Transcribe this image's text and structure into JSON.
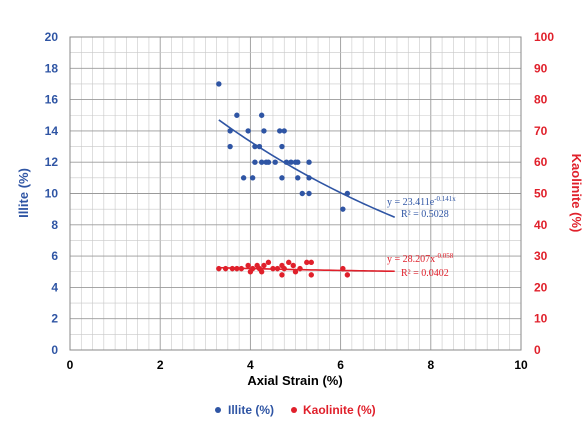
{
  "chart_data": {
    "type": "scatter",
    "xlabel": "Axial Strain (%)",
    "ylabel_left": "Illite (%)",
    "ylabel_right": "Kaolinite (%)",
    "xlim": [
      0,
      10
    ],
    "ylim_left": [
      0,
      20
    ],
    "ylim_right": [
      0,
      100
    ],
    "x_ticks": [
      "0",
      "2",
      "4",
      "6",
      "8",
      "10"
    ],
    "y_left_ticks": [
      "0",
      "2",
      "4",
      "6",
      "8",
      "10",
      "12",
      "14",
      "16",
      "18",
      "20"
    ],
    "y_right_ticks": [
      "0",
      "10",
      "20",
      "30",
      "40",
      "50",
      "60",
      "70",
      "80",
      "90",
      "100"
    ],
    "grid": true,
    "legend_position": "bottom",
    "colors": {
      "illite": "#2f55a4",
      "kaolinite": "#e0202b",
      "axis_left": "#2f55a4",
      "axis_right": "#e0202b"
    },
    "series": [
      {
        "name": "Illite (%)",
        "axis": "left",
        "points": [
          [
            3.3,
            17
          ],
          [
            3.55,
            14
          ],
          [
            3.55,
            13
          ],
          [
            3.7,
            15
          ],
          [
            3.85,
            11
          ],
          [
            3.95,
            14
          ],
          [
            4.05,
            11
          ],
          [
            4.1,
            13
          ],
          [
            4.1,
            12
          ],
          [
            4.2,
            13
          ],
          [
            4.25,
            15
          ],
          [
            4.25,
            12
          ],
          [
            4.3,
            14
          ],
          [
            4.35,
            12
          ],
          [
            4.4,
            12
          ],
          [
            4.55,
            12
          ],
          [
            4.65,
            14
          ],
          [
            4.7,
            11
          ],
          [
            4.7,
            13
          ],
          [
            4.75,
            14
          ],
          [
            4.8,
            12
          ],
          [
            4.9,
            12
          ],
          [
            5.0,
            12
          ],
          [
            5.05,
            11
          ],
          [
            5.05,
            12
          ],
          [
            5.15,
            10
          ],
          [
            5.3,
            12
          ],
          [
            5.3,
            11
          ],
          [
            5.3,
            10
          ],
          [
            6.05,
            9
          ],
          [
            6.15,
            10
          ]
        ],
        "trendline": {
          "equation": "y = 23.411e",
          "exponent": "-0.141x",
          "r2": "R² = 0.5028",
          "a": 23.411,
          "b": -0.141,
          "x_range": [
            3.3,
            7.2
          ]
        }
      },
      {
        "name": "Kaolinite (%)",
        "axis": "right",
        "points": [
          [
            3.3,
            26
          ],
          [
            3.45,
            26
          ],
          [
            3.6,
            26
          ],
          [
            3.7,
            26
          ],
          [
            3.8,
            26
          ],
          [
            3.95,
            27
          ],
          [
            4.0,
            25
          ],
          [
            4.05,
            26
          ],
          [
            4.15,
            27
          ],
          [
            4.2,
            26
          ],
          [
            4.25,
            25
          ],
          [
            4.3,
            27
          ],
          [
            4.4,
            28
          ],
          [
            4.5,
            26
          ],
          [
            4.6,
            26
          ],
          [
            4.7,
            27
          ],
          [
            4.7,
            24
          ],
          [
            4.75,
            26
          ],
          [
            4.85,
            28
          ],
          [
            4.95,
            27
          ],
          [
            5.0,
            25
          ],
          [
            5.1,
            26
          ],
          [
            5.25,
            28
          ],
          [
            5.35,
            24
          ],
          [
            5.35,
            28
          ],
          [
            6.05,
            26
          ],
          [
            6.15,
            24
          ]
        ],
        "trendline": {
          "equation": "y = 28.207x",
          "exponent": "-0.058",
          "r2": "R² = 0.0402",
          "a": 28.207,
          "b": -0.058,
          "x_range": [
            3.3,
            7.2
          ]
        }
      }
    ]
  }
}
